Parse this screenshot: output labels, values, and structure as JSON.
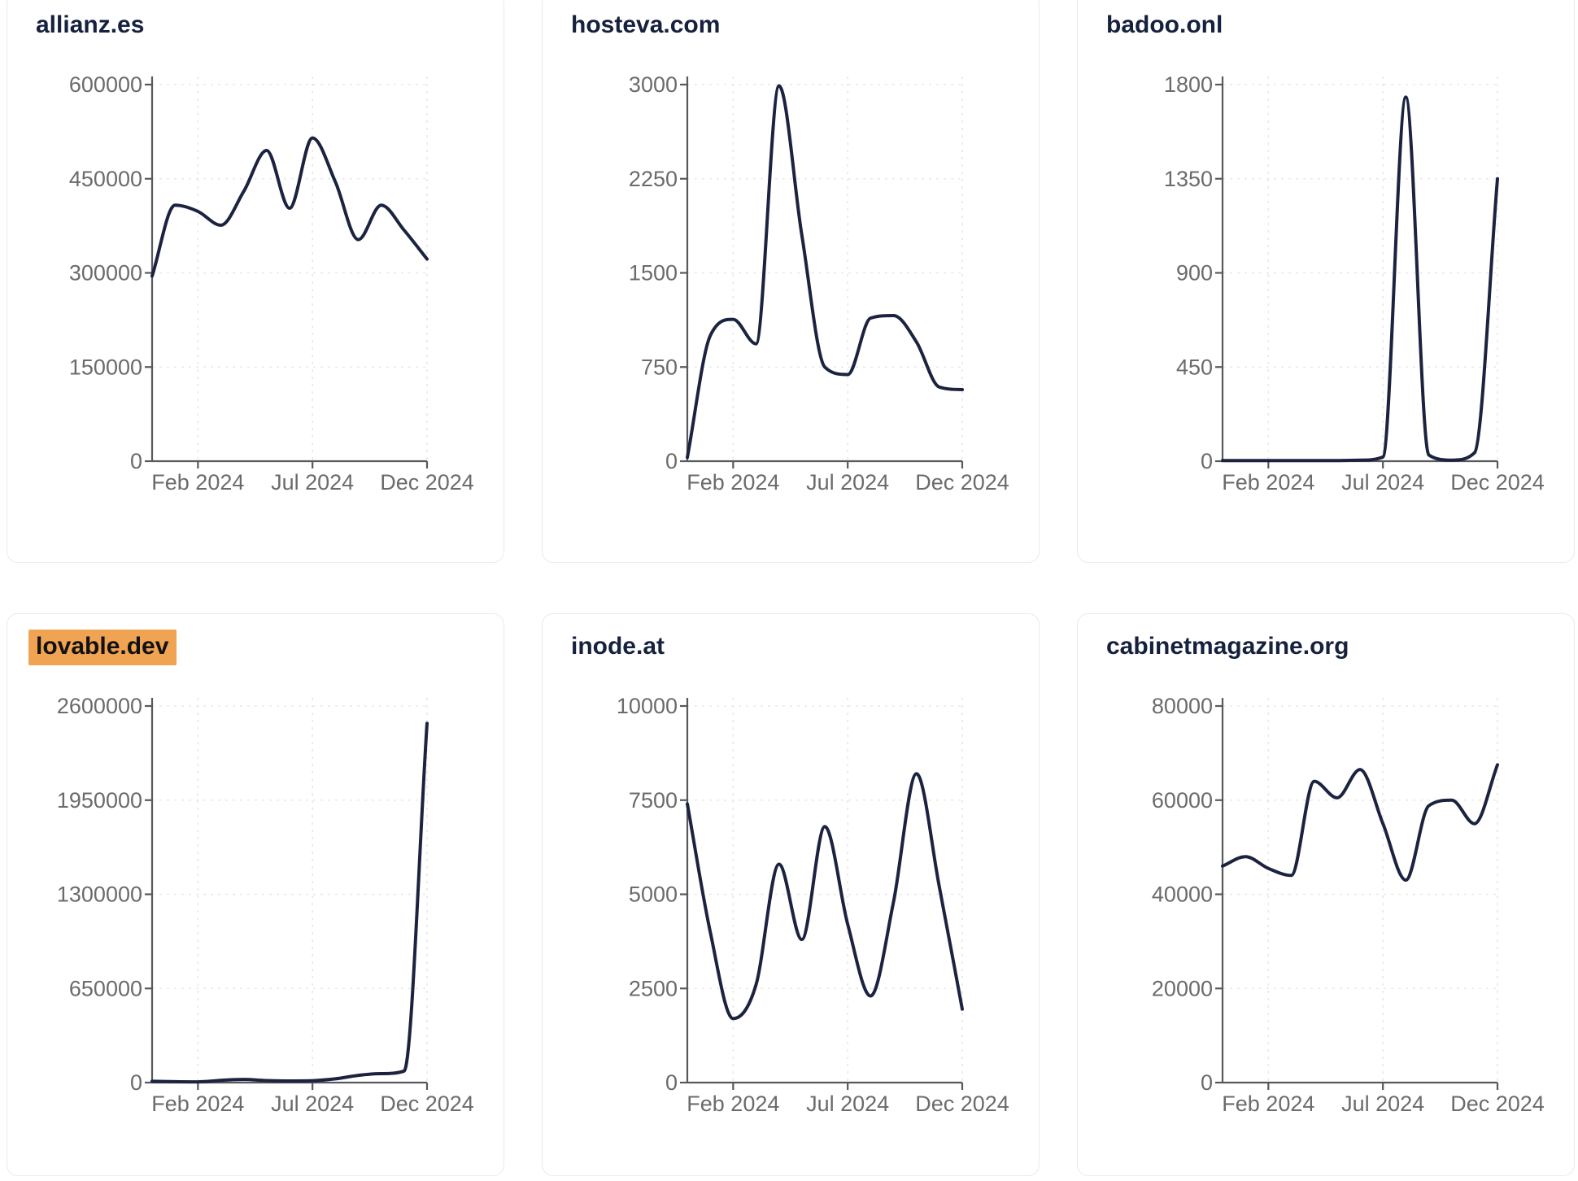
{
  "page": {
    "background": "#ffffff"
  },
  "style": {
    "line_color": "#1b2340",
    "title_color": "#15213d",
    "axis_color": "#57595c",
    "tick_label_color": "#6b6b6b",
    "grid_color": "#e8e8e8",
    "card_border_color": "#e7eaf2",
    "highlight_color": "#f0a352",
    "highlight_text_color": "#111111"
  },
  "x_axis": {
    "months": [
      "Dec 2023",
      "Jan 2024",
      "Feb 2024",
      "Mar 2024",
      "Apr 2024",
      "May 2024",
      "Jun 2024",
      "Jul 2024",
      "Aug 2024",
      "Sep 2024",
      "Oct 2024",
      "Nov 2024",
      "Dec 2024"
    ],
    "tick_labels": [
      "Feb 2024",
      "Jul 2024",
      "Dec 2024"
    ],
    "tick_month_index": [
      2,
      7,
      12
    ]
  },
  "chart_data": [
    {
      "type": "line",
      "title": "allianz.es",
      "highlighted": false,
      "x": "monthly, Dec 2023 - Dec 2024",
      "values": [
        295000,
        408000,
        398000,
        376000,
        430000,
        495000,
        403000,
        515000,
        445000,
        353000,
        408000,
        368000,
        322000
      ],
      "ylim": [
        0,
        600000
      ],
      "yticks": [
        0,
        150000,
        300000,
        450000,
        600000
      ],
      "grid": true,
      "legend": false
    },
    {
      "type": "line",
      "title": "hosteva.com",
      "highlighted": false,
      "x": "monthly, Dec 2023 - Dec 2024",
      "values": [
        30,
        1000,
        1130,
        935,
        2990,
        1800,
        750,
        690,
        1140,
        1160,
        950,
        590,
        570
      ],
      "ylim": [
        0,
        3000
      ],
      "yticks": [
        0,
        750,
        1500,
        2250,
        3000
      ],
      "grid": true,
      "legend": false
    },
    {
      "type": "line",
      "title": "badoo.onl",
      "highlighted": false,
      "x": "monthly, Dec 2023 - Dec 2024",
      "values": [
        3,
        3,
        3,
        3,
        3,
        3,
        5,
        20,
        1740,
        30,
        5,
        40,
        1350
      ],
      "ylim": [
        0,
        1800
      ],
      "yticks": [
        0,
        450,
        900,
        1350,
        1800
      ],
      "grid": true,
      "legend": false
    },
    {
      "type": "line",
      "title": "lovable.dev",
      "highlighted": true,
      "x": "monthly, Dec 2023 - Dec 2024",
      "values": [
        9000,
        6000,
        5000,
        16000,
        22000,
        14000,
        11000,
        13000,
        26000,
        50000,
        62000,
        80000,
        2480000
      ],
      "ylim": [
        0,
        2600000
      ],
      "yticks": [
        0,
        650000,
        1300000,
        1950000,
        2600000
      ],
      "grid": true,
      "legend": false
    },
    {
      "type": "line",
      "title": "inode.at",
      "highlighted": false,
      "x": "monthly, Dec 2023 - Dec 2024",
      "values": [
        7400,
        4000,
        1700,
        2600,
        5800,
        3800,
        6800,
        4200,
        2300,
        4800,
        8200,
        5200,
        1950
      ],
      "ylim": [
        0,
        10000
      ],
      "yticks": [
        0,
        2500,
        5000,
        7500,
        10000
      ],
      "grid": true,
      "legend": false
    },
    {
      "type": "line",
      "title": "cabinetmagazine.org",
      "highlighted": false,
      "x": "monthly, Dec 2023 - Dec 2024",
      "values": [
        46000,
        48000,
        45500,
        44000,
        64000,
        60500,
        66500,
        55000,
        43000,
        58800,
        60000,
        55000,
        67500
      ],
      "ylim": [
        0,
        80000
      ],
      "yticks": [
        0,
        20000,
        40000,
        60000,
        80000
      ],
      "grid": true,
      "legend": false
    }
  ]
}
